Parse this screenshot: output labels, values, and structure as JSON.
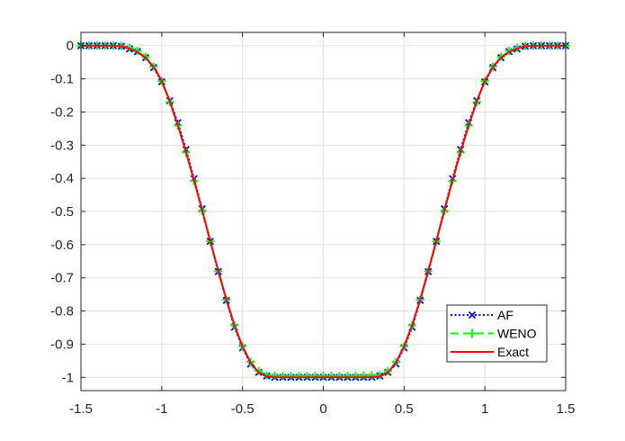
{
  "chart_data": {
    "type": "line",
    "title": "",
    "xlabel": "",
    "ylabel": "",
    "xlim": [
      -1.5,
      1.5
    ],
    "ylim": [
      -1.04,
      0.04
    ],
    "xticks": [
      -1.5,
      -1,
      -0.5,
      0,
      0.5,
      1,
      1.5
    ],
    "xtick_labels": [
      "-1.5",
      "-1",
      "-0.5",
      "0",
      "0.5",
      "1",
      "1.5"
    ],
    "yticks": [
      0,
      -0.1,
      -0.2,
      -0.3,
      -0.4,
      -0.5,
      -0.6,
      -0.7,
      -0.8,
      -0.9,
      -1
    ],
    "ytick_labels": [
      "0",
      "-0.1",
      "-0.2",
      "-0.3",
      "-0.4",
      "-0.5",
      "-0.6",
      "-0.7",
      "-0.8",
      "-0.9",
      "-1"
    ],
    "grid": true,
    "legend_position": "bottom-right",
    "series": [
      {
        "name": "AF",
        "color": "#0000ff",
        "line_style": "dotted",
        "marker": "x",
        "x": [
          -1.5,
          -1.45,
          -1.4,
          -1.35,
          -1.3,
          -1.25,
          -1.2,
          -1.15,
          -1.1,
          -1.05,
          -1.0,
          -0.95,
          -0.9,
          -0.85,
          -0.8,
          -0.75,
          -0.7,
          -0.65,
          -0.6,
          -0.55,
          -0.5,
          -0.45,
          -0.4,
          -0.35,
          -0.3,
          -0.25,
          -0.2,
          -0.15,
          -0.1,
          -0.05,
          0.0,
          0.05,
          0.1,
          0.15,
          0.2,
          0.25,
          0.3,
          0.35,
          0.4,
          0.45,
          0.5,
          0.55,
          0.6,
          0.65,
          0.7,
          0.75,
          0.8,
          0.85,
          0.9,
          0.95,
          1.0,
          1.05,
          1.1,
          1.15,
          1.2,
          1.25,
          1.3,
          1.35,
          1.4,
          1.45,
          1.5
        ],
        "y": [
          0,
          0,
          0,
          0,
          0,
          -0.002,
          -0.01,
          -0.018,
          -0.036,
          -0.066,
          -0.109,
          -0.166,
          -0.232,
          -0.313,
          -0.401,
          -0.492,
          -0.59,
          -0.681,
          -0.768,
          -0.849,
          -0.911,
          -0.96,
          -0.985,
          -0.996,
          -1,
          -1,
          -1,
          -1,
          -1,
          -1,
          -1,
          -1,
          -1,
          -1,
          -1,
          -1,
          -1,
          -0.996,
          -0.985,
          -0.96,
          -0.911,
          -0.849,
          -0.768,
          -0.681,
          -0.59,
          -0.492,
          -0.401,
          -0.313,
          -0.232,
          -0.166,
          -0.109,
          -0.066,
          -0.036,
          -0.018,
          -0.01,
          -0.002,
          0,
          0,
          0,
          0,
          0
        ]
      },
      {
        "name": "WENO",
        "color": "#00ff00",
        "line_style": "dashed",
        "marker": "+",
        "x": [
          -1.5,
          -1.45,
          -1.4,
          -1.35,
          -1.3,
          -1.25,
          -1.2,
          -1.15,
          -1.1,
          -1.05,
          -1.0,
          -0.95,
          -0.9,
          -0.85,
          -0.8,
          -0.75,
          -0.7,
          -0.65,
          -0.6,
          -0.55,
          -0.5,
          -0.45,
          -0.4,
          -0.35,
          -0.3,
          -0.25,
          -0.2,
          -0.15,
          -0.1,
          -0.05,
          0.0,
          0.05,
          0.1,
          0.15,
          0.2,
          0.25,
          0.3,
          0.35,
          0.4,
          0.45,
          0.5,
          0.55,
          0.6,
          0.65,
          0.7,
          0.75,
          0.8,
          0.85,
          0.9,
          0.95,
          1.0,
          1.05,
          1.1,
          1.15,
          1.2,
          1.25,
          1.3,
          1.35,
          1.4,
          1.45,
          1.5
        ],
        "y": [
          0,
          0,
          0,
          0,
          0,
          -0.001,
          -0.006,
          -0.016,
          -0.034,
          -0.063,
          -0.107,
          -0.17,
          -0.241,
          -0.322,
          -0.408,
          -0.498,
          -0.59,
          -0.68,
          -0.766,
          -0.843,
          -0.906,
          -0.953,
          -0.981,
          -0.994,
          -0.995,
          -0.996,
          -0.996,
          -0.996,
          -0.996,
          -0.996,
          -0.996,
          -0.996,
          -0.996,
          -0.996,
          -0.996,
          -0.995,
          -0.994,
          -0.994,
          -0.981,
          -0.953,
          -0.906,
          -0.843,
          -0.766,
          -0.68,
          -0.59,
          -0.498,
          -0.408,
          -0.322,
          -0.241,
          -0.17,
          -0.107,
          -0.063,
          -0.034,
          -0.016,
          -0.006,
          -0.001,
          0,
          0,
          0,
          0,
          0
        ]
      },
      {
        "name": "Exact",
        "color": "#ff0000",
        "line_style": "solid",
        "marker": "none",
        "x": [
          -1.5,
          -1.45,
          -1.4,
          -1.35,
          -1.3,
          -1.25,
          -1.2,
          -1.15,
          -1.1,
          -1.05,
          -1.0,
          -0.95,
          -0.9,
          -0.85,
          -0.8,
          -0.75,
          -0.7,
          -0.65,
          -0.6,
          -0.55,
          -0.5,
          -0.45,
          -0.4,
          -0.35,
          -0.3,
          -0.25,
          -0.2,
          -0.15,
          -0.1,
          -0.05,
          0.0,
          0.05,
          0.1,
          0.15,
          0.2,
          0.25,
          0.3,
          0.35,
          0.4,
          0.45,
          0.5,
          0.55,
          0.6,
          0.65,
          0.7,
          0.75,
          0.8,
          0.85,
          0.9,
          0.95,
          1.0,
          1.05,
          1.1,
          1.15,
          1.2,
          1.25,
          1.3,
          1.35,
          1.4,
          1.45,
          1.5
        ],
        "y": [
          0,
          0,
          0,
          0,
          0,
          -0.002,
          -0.009,
          -0.019,
          -0.036,
          -0.064,
          -0.106,
          -0.168,
          -0.24,
          -0.32,
          -0.406,
          -0.496,
          -0.588,
          -0.678,
          -0.765,
          -0.843,
          -0.907,
          -0.956,
          -0.985,
          -0.997,
          -1,
          -1,
          -1,
          -1,
          -1,
          -1,
          -1,
          -1,
          -1,
          -1,
          -1,
          -1,
          -1,
          -0.997,
          -0.985,
          -0.956,
          -0.907,
          -0.843,
          -0.765,
          -0.678,
          -0.588,
          -0.496,
          -0.406,
          -0.32,
          -0.24,
          -0.168,
          -0.106,
          -0.064,
          -0.036,
          -0.019,
          -0.009,
          -0.002,
          0,
          0,
          0,
          0,
          0
        ]
      }
    ]
  }
}
